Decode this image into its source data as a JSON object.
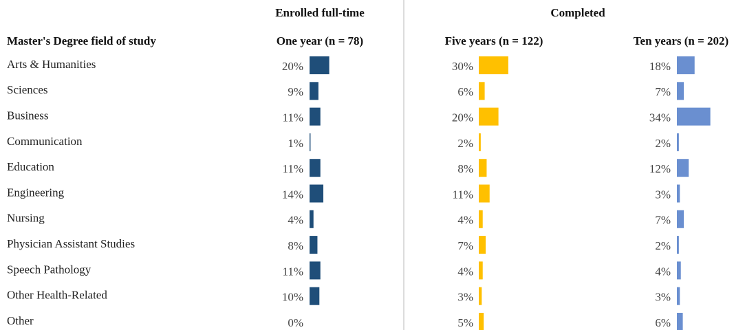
{
  "chart_data": {
    "type": "bar",
    "category_title": "Master's Degree field of study",
    "categories": [
      "Arts & Humanities",
      "Sciences",
      "Business",
      "Communication",
      "Education",
      "Engineering",
      "Nursing",
      "Physician Assistant Studies",
      "Speech Pathology",
      "Other Health-Related",
      "Other"
    ],
    "groups": [
      {
        "label": "Enrolled full-time",
        "series": [
          {
            "name": "One year (n = 78)",
            "color": "#1f4e79",
            "values": [
              20,
              9,
              11,
              1,
              11,
              14,
              4,
              8,
              11,
              10,
              0
            ],
            "value_labels": [
              "20%",
              "9%",
              "11%",
              "1%",
              "11%",
              "14%",
              "4%",
              "8%",
              "11%",
              "10%",
              "0%"
            ]
          }
        ]
      },
      {
        "label": "Completed",
        "series": [
          {
            "name": "Five years (n = 122)",
            "color": "#ffc000",
            "values": [
              30,
              6,
              20,
              2,
              8,
              11,
              4,
              7,
              4,
              3,
              5
            ],
            "value_labels": [
              "30%",
              "6%",
              "20%",
              "2%",
              "8%",
              "11%",
              "4%",
              "7%",
              "4%",
              "3%",
              "5%"
            ]
          },
          {
            "name": "Ten years (n = 202)",
            "color": "#6a8fd0",
            "values": [
              18,
              7,
              34,
              2,
              12,
              3,
              7,
              2,
              4,
              3,
              6
            ],
            "value_labels": [
              "18%",
              "7%",
              "34%",
              "2%",
              "12%",
              "3%",
              "7%",
              "2%",
              "4%",
              "3%",
              "6%"
            ]
          }
        ]
      }
    ]
  }
}
